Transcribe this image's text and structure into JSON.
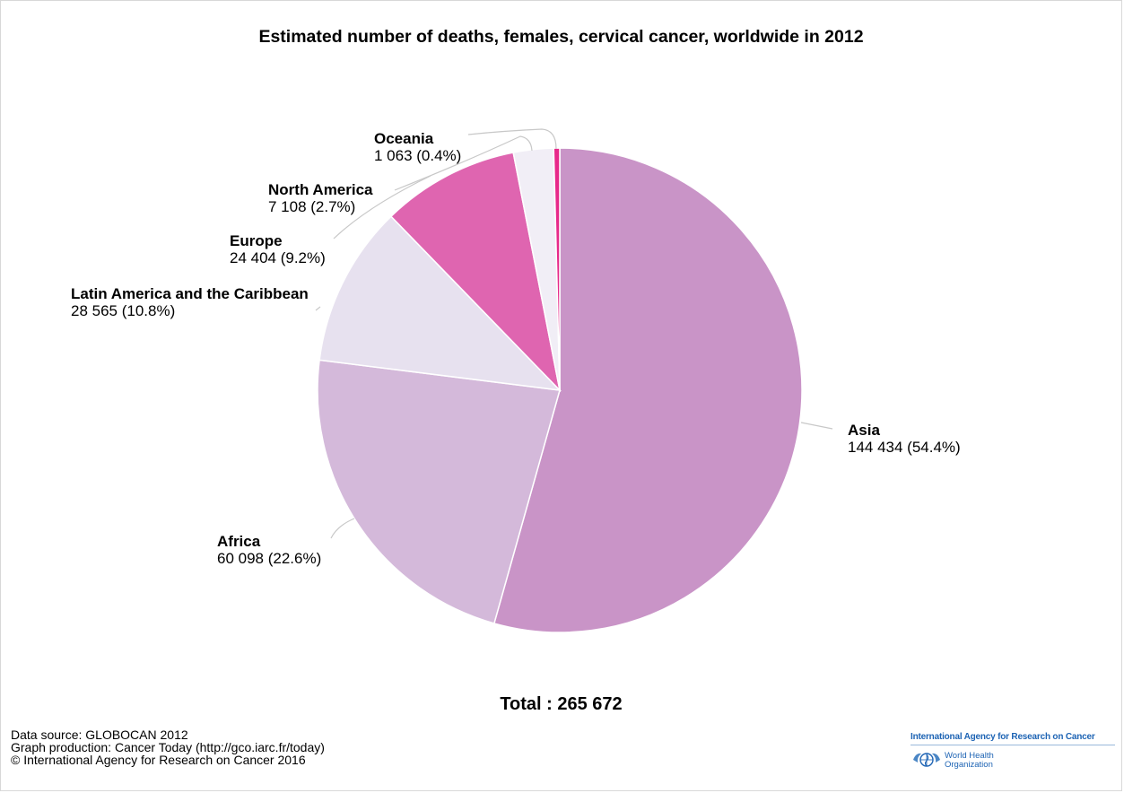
{
  "title": "Estimated number of deaths, females, cervical cancer, worldwide in 2012",
  "total_text": "Total : 265 672",
  "credits": {
    "line1": "Data source: GLOBOCAN 2012",
    "line2": "Graph production: Cancer Today (http://gco.iarc.fr/today)",
    "line3": "© International Agency for Research on Cancer 2016"
  },
  "logos": {
    "iarc": "International Agency for Research on Cancer",
    "who_line1": "World Health",
    "who_line2": "Organization"
  },
  "chart_data": {
    "type": "pie",
    "title": "Estimated number of deaths, females, cervical cancer, worldwide in 2012",
    "total": 265672,
    "slices": [
      {
        "name": "Asia",
        "value": 144434,
        "value_label": "144 434 (54.4%)",
        "percent": 54.4,
        "color": "#c994c7"
      },
      {
        "name": "Africa",
        "value": 60098,
        "value_label": "60 098 (22.6%)",
        "percent": 22.6,
        "color": "#d4b9da"
      },
      {
        "name": "Latin America and the Caribbean",
        "value": 28565,
        "value_label": "28 565 (10.8%)",
        "percent": 10.8,
        "color": "#e7e1ef"
      },
      {
        "name": "Europe",
        "value": 24404,
        "value_label": "24 404 (9.2%)",
        "percent": 9.2,
        "color": "#df65b0"
      },
      {
        "name": "North America",
        "value": 7108,
        "value_label": "7 108 (2.7%)",
        "percent": 2.7,
        "color": "#f1eef6"
      },
      {
        "name": "Oceania",
        "value": 1063,
        "value_label": "1 063 (0.4%)",
        "percent": 0.4,
        "color": "#e7298a"
      }
    ]
  }
}
